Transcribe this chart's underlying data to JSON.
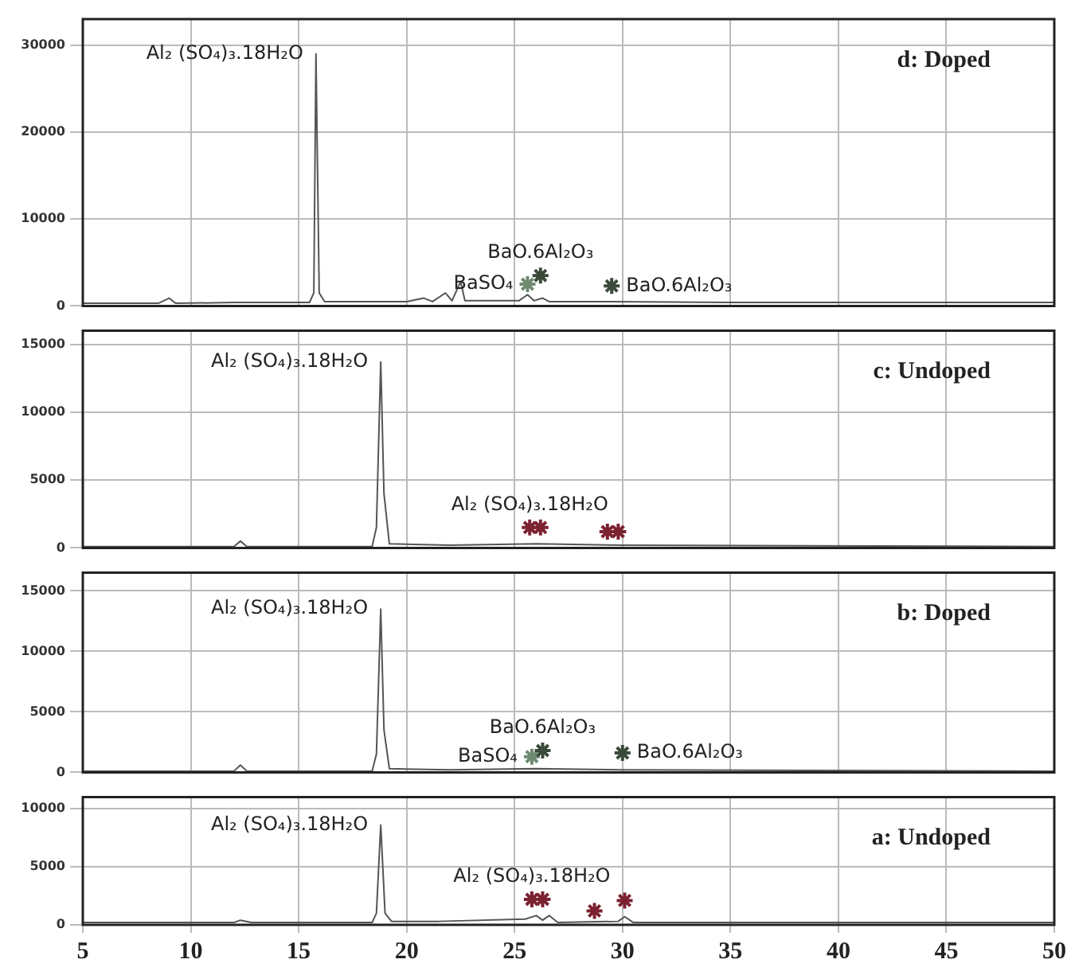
{
  "chart_data": [
    {
      "type": "line",
      "xlim": [
        5,
        50
      ],
      "xticks": [
        5,
        10,
        15,
        20,
        25,
        30,
        35,
        40,
        45,
        50
      ],
      "ylim": [
        0,
        33000
      ],
      "yticks": [
        0,
        10000,
        20000,
        30000
      ],
      "grid": true,
      "tick_labels": "y",
      "marker": "none",
      "series": [
        {
          "color": "#555555",
          "x": [
            5,
            8.5,
            9,
            9.3,
            12,
            15.5,
            15.7,
            15.8,
            15.95,
            16.2,
            20,
            20.8,
            21.2,
            21.8,
            22.1,
            22.5,
            22.7,
            25.2,
            25.6,
            25.9,
            26.3,
            26.6,
            29.5,
            35,
            50
          ],
          "values": [
            300,
            300,
            900,
            300,
            400,
            400,
            1500,
            29000,
            1500,
            500,
            500,
            900,
            500,
            1500,
            600,
            2800,
            600,
            600,
            1300,
            600,
            900,
            500,
            500,
            400,
            400
          ]
        },
        {
          "type": "scatter",
          "marker": "cross",
          "x": [
            25.6,
            26.2,
            29.5
          ],
          "values": [
            2500,
            3500,
            2300
          ],
          "colors": [
            "#6f8a6f",
            "#3a4a3a",
            "#3a4a3a"
          ]
        }
      ],
      "annotations": [
        "d: Doped",
        {
          "text": "Al₂ (SO₄)₃.18H₂O",
          "x": 15.8,
          "y": 29000
        },
        {
          "text": "BaSO₄",
          "x": 25.6,
          "y": 2500
        },
        {
          "text": "BaO.6Al₂O₃",
          "x": 26.2,
          "y": 3500
        },
        {
          "text": "BaO.6Al₂O₃",
          "x": 29.5,
          "y": 2300
        }
      ]
    },
    {
      "type": "line",
      "xlim": [
        5,
        50
      ],
      "xticks": [
        5,
        10,
        15,
        20,
        25,
        30,
        35,
        40,
        45,
        50
      ],
      "ylim": [
        0,
        16000
      ],
      "yticks": [
        0,
        5000,
        10000,
        15000
      ],
      "grid": true,
      "tick_labels": "y",
      "marker": "none",
      "series": [
        {
          "color": "#555555",
          "x": [
            5,
            12,
            12.3,
            12.6,
            18.4,
            18.6,
            18.8,
            18.95,
            19.2,
            22,
            26,
            30,
            50
          ],
          "values": [
            100,
            100,
            500,
            100,
            100,
            1500,
            13700,
            4000,
            300,
            200,
            300,
            200,
            100
          ]
        },
        {
          "type": "scatter",
          "marker": "cross",
          "x": [
            25.7,
            26.2,
            29.3,
            29.8
          ],
          "values": [
            1500,
            1500,
            1200,
            1200
          ],
          "colors": [
            "#7b2230",
            "#7b2230",
            "#7b2230",
            "#7b2230"
          ]
        }
      ],
      "annotations": [
        "c: Undoped",
        {
          "text": "Al₂ (SO₄)₃.18H₂O",
          "x": 18.8,
          "y": 13700
        },
        {
          "text": "Al₂ (SO₄)₃.18H₂O",
          "x": 25.7,
          "y": 1500
        }
      ]
    },
    {
      "type": "line",
      "xlim": [
        5,
        50
      ],
      "xticks": [
        5,
        10,
        15,
        20,
        25,
        30,
        35,
        40,
        45,
        50
      ],
      "ylim": [
        0,
        16500
      ],
      "yticks": [
        0,
        5000,
        10000,
        15000
      ],
      "grid": true,
      "tick_labels": "y",
      "marker": "none",
      "series": [
        {
          "color": "#555555",
          "x": [
            5,
            12,
            12.3,
            12.6,
            18.4,
            18.6,
            18.8,
            18.95,
            19.2,
            22,
            26,
            30,
            50
          ],
          "values": [
            100,
            100,
            600,
            100,
            100,
            1500,
            13500,
            3500,
            300,
            200,
            300,
            200,
            100
          ]
        },
        {
          "type": "scatter",
          "marker": "cross",
          "x": [
            25.8,
            26.3,
            30
          ],
          "values": [
            1300,
            1800,
            1600
          ],
          "colors": [
            "#6f8a6f",
            "#3a4a3a",
            "#3a4a3a"
          ]
        }
      ],
      "annotations": [
        "b: Doped",
        {
          "text": "Al₂ (SO₄)₃.18H₂O",
          "x": 18.8,
          "y": 13500
        },
        {
          "text": "BaO.6Al₂O₃",
          "x": 26.3,
          "y": 1800
        },
        {
          "text": "BaSO₄",
          "x": 25.8,
          "y": 1300
        },
        {
          "text": "BaO.6Al₂O₃",
          "x": 30,
          "y": 1600
        }
      ]
    },
    {
      "type": "line",
      "xlim": [
        5,
        50
      ],
      "xticks": [
        5,
        10,
        15,
        20,
        25,
        30,
        35,
        40,
        45,
        50
      ],
      "ylim": [
        0,
        11000
      ],
      "yticks": [
        0,
        5000,
        10000
      ],
      "grid": true,
      "marker": "none",
      "series": [
        {
          "color": "#555555",
          "x": [
            5,
            12,
            12.3,
            12.8,
            18.4,
            18.6,
            18.8,
            19,
            19.3,
            21.5,
            25.5,
            26,
            26.3,
            26.6,
            27,
            29.8,
            30.1,
            30.5,
            50
          ],
          "values": [
            200,
            200,
            400,
            200,
            200,
            1000,
            8600,
            1000,
            300,
            300,
            500,
            800,
            400,
            800,
            200,
            300,
            700,
            200,
            200
          ]
        },
        {
          "type": "scatter",
          "marker": "cross",
          "x": [
            25.8,
            26.3,
            28.7,
            30.1
          ],
          "values": [
            2200,
            2200,
            1200,
            2100
          ],
          "colors": [
            "#7b2230",
            "#7b2230",
            "#7b2230",
            "#7b2230"
          ]
        }
      ],
      "annotations": [
        "a: Undoped",
        {
          "text": "Al₂ (SO₄)₃.18H₂O",
          "x": 18.8,
          "y": 8600
        },
        {
          "text": "Al₂ (SO₄)₃.18H₂O",
          "x": 25.8,
          "y": 2200
        }
      ]
    }
  ]
}
